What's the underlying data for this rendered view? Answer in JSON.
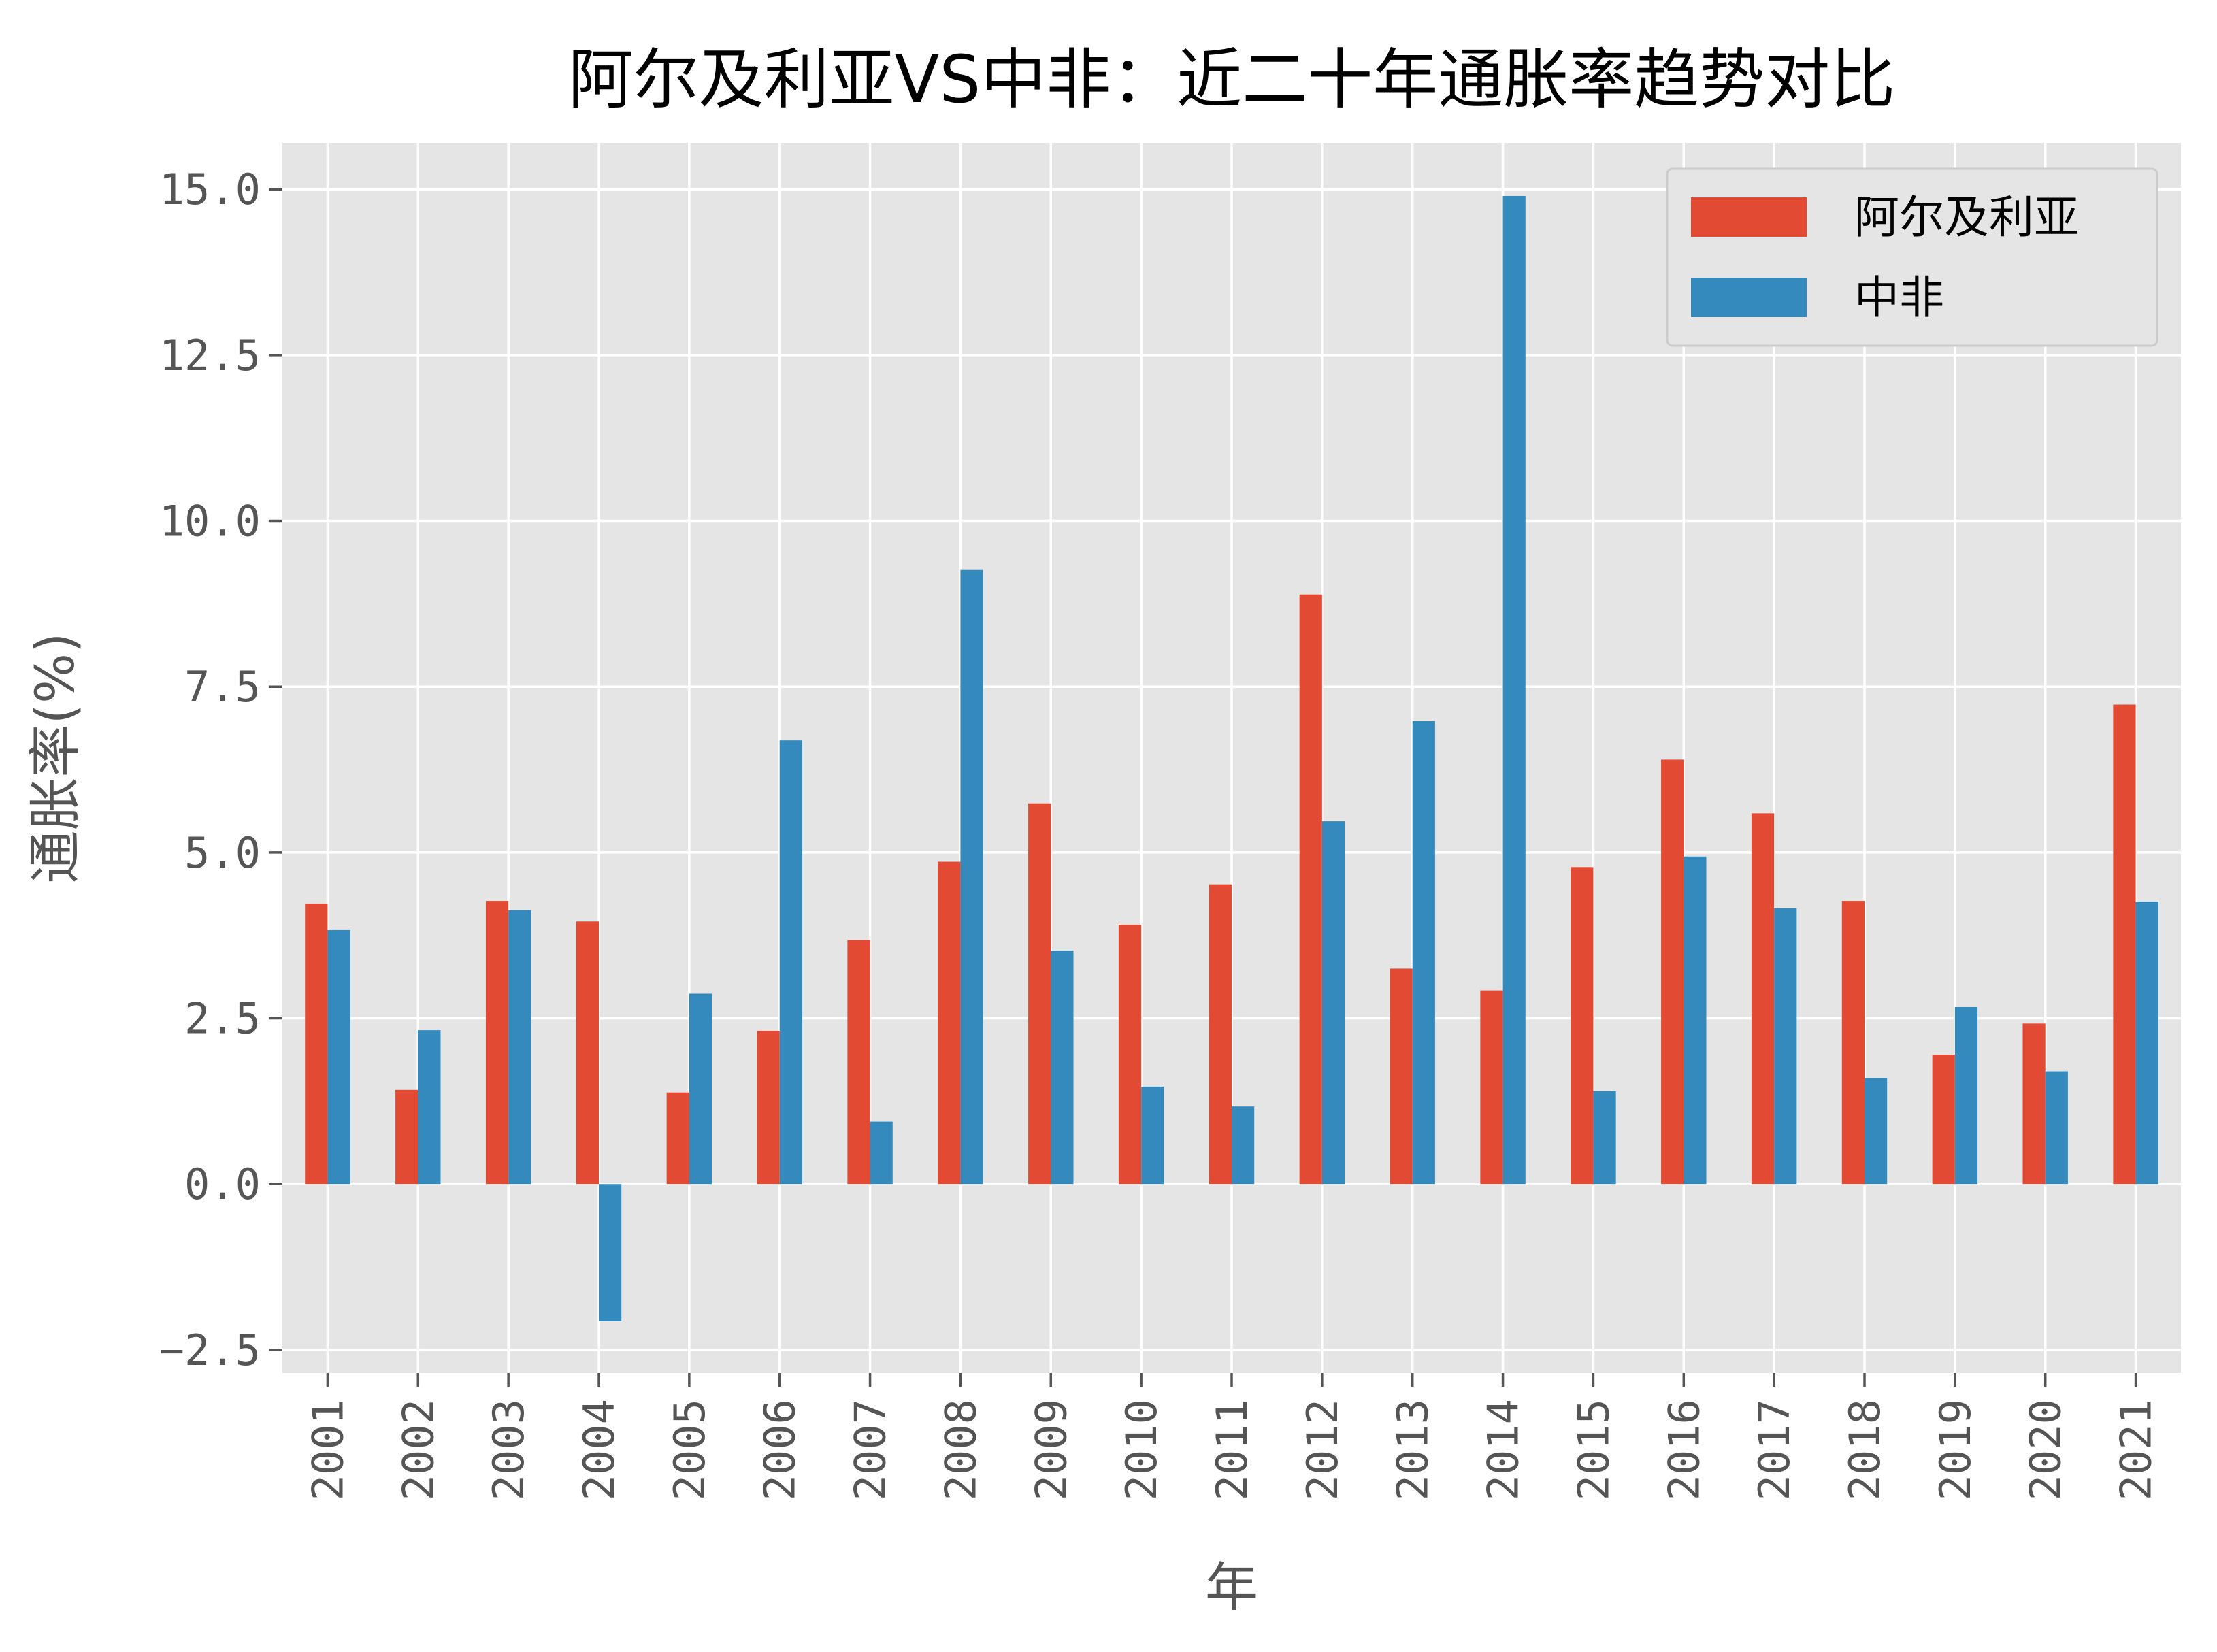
{
  "chart_data": {
    "type": "bar",
    "title": "阿尔及利亚VS中非：近二十年通胀率趋势对比",
    "xlabel": "年",
    "ylabel": "通胀率(%)",
    "ylim": [
      -2.85,
      15.7
    ],
    "yticks": [
      -2.5,
      0.0,
      2.5,
      5.0,
      7.5,
      10.0,
      12.5,
      15.0
    ],
    "ytick_labels": [
      "−2.5",
      "0.0",
      "2.5",
      "5.0",
      "7.5",
      "10.0",
      "12.5",
      "15.0"
    ],
    "grid": true,
    "legend_position": "top-right",
    "categories": [
      "2001",
      "2002",
      "2003",
      "2004",
      "2005",
      "2006",
      "2007",
      "2008",
      "2009",
      "2010",
      "2011",
      "2012",
      "2013",
      "2014",
      "2015",
      "2016",
      "2017",
      "2018",
      "2019",
      "2020",
      "2021"
    ],
    "series": [
      {
        "name": "阿尔及利亚",
        "color": "#E24A33",
        "values": [
          4.23,
          1.42,
          4.27,
          3.96,
          1.38,
          2.31,
          3.68,
          4.86,
          5.74,
          3.91,
          4.52,
          8.89,
          3.25,
          2.92,
          4.78,
          6.4,
          5.59,
          4.27,
          1.95,
          2.42,
          7.23
        ]
      },
      {
        "name": "中非",
        "color": "#348ABD",
        "values": [
          3.83,
          2.32,
          4.13,
          -2.07,
          2.87,
          6.69,
          0.94,
          9.26,
          3.52,
          1.47,
          1.17,
          5.47,
          6.98,
          14.9,
          1.4,
          4.94,
          4.16,
          1.6,
          2.67,
          1.7,
          4.26
        ]
      }
    ]
  }
}
